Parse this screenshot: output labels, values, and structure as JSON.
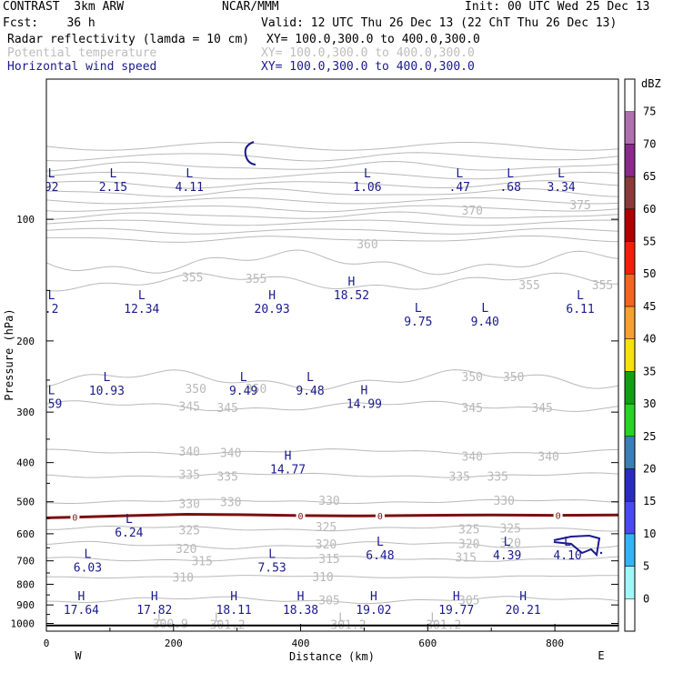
{
  "header": {
    "model": "CONTRAST  3km ARW",
    "org": "NCAR/MMM",
    "init": "Init: 00 UTC Wed 25 Dec 13",
    "fcst": "Fcst:    36 h",
    "valid": "Valid: 12 UTC Thu 26 Dec 13 (22 ChT Thu 26 Dec 13)",
    "field1": "Radar reflectivity (lamda = 10 cm)",
    "field1_xy": "XY= 100.0,300.0 to 400.0,300.0",
    "field2": "Potential temperature",
    "field2_xy": "XY= 100.0,300.0 to 400.0,300.0",
    "field3": "Horizontal wind speed",
    "field3_xy": "XY= 100.0,300.0 to 400.0,300.0"
  },
  "colors": {
    "theta": "#b9b9b9",
    "wind": "#1a1a8c",
    "freezing": "#7a1010"
  },
  "chart_data": {
    "type": "cross-section",
    "xlabel": "Distance (km)",
    "ylabel": "Pressure (hPa)",
    "xlim": [
      0,
      900
    ],
    "ylim": [
      1045,
      45
    ],
    "y_scale": "log-pressure",
    "x_ticks": [
      "0",
      "200",
      "400",
      "600",
      "800"
    ],
    "y_ticks": [
      "100",
      "200",
      "300",
      "400",
      "500",
      "600",
      "700",
      "800",
      "900",
      "1000"
    ],
    "west_label": "W",
    "east_label": "E",
    "theta_labels": [
      {
        "text": "375",
        "x": 840,
        "p": 92
      },
      {
        "text": "370",
        "x": 670,
        "p": 95
      },
      {
        "text": "360",
        "x": 505,
        "p": 115
      },
      {
        "text": "355",
        "x": 230,
        "p": 139
      },
      {
        "text": "355",
        "x": 330,
        "p": 140
      },
      {
        "text": "355",
        "x": 760,
        "p": 145
      },
      {
        "text": "355",
        "x": 875,
        "p": 145
      },
      {
        "text": "350",
        "x": 235,
        "p": 262
      },
      {
        "text": "350",
        "x": 330,
        "p": 262
      },
      {
        "text": "350",
        "x": 670,
        "p": 245
      },
      {
        "text": "350",
        "x": 735,
        "p": 245
      },
      {
        "text": "345",
        "x": 225,
        "p": 290
      },
      {
        "text": "345",
        "x": 285,
        "p": 292
      },
      {
        "text": "345",
        "x": 670,
        "p": 292
      },
      {
        "text": "345",
        "x": 780,
        "p": 292
      },
      {
        "text": "340",
        "x": 225,
        "p": 375
      },
      {
        "text": "340",
        "x": 290,
        "p": 378
      },
      {
        "text": "340",
        "x": 670,
        "p": 385
      },
      {
        "text": "340",
        "x": 790,
        "p": 385
      },
      {
        "text": "335",
        "x": 225,
        "p": 428
      },
      {
        "text": "335",
        "x": 285,
        "p": 432
      },
      {
        "text": "335",
        "x": 650,
        "p": 432
      },
      {
        "text": "335",
        "x": 710,
        "p": 432
      },
      {
        "text": "330",
        "x": 225,
        "p": 504
      },
      {
        "text": "330",
        "x": 290,
        "p": 500
      },
      {
        "text": "330",
        "x": 445,
        "p": 496
      },
      {
        "text": "330",
        "x": 720,
        "p": 496
      },
      {
        "text": "325",
        "x": 225,
        "p": 587
      },
      {
        "text": "325",
        "x": 440,
        "p": 576
      },
      {
        "text": "325",
        "x": 665,
        "p": 584
      },
      {
        "text": "325",
        "x": 730,
        "p": 580
      },
      {
        "text": "320",
        "x": 220,
        "p": 652
      },
      {
        "text": "320",
        "x": 440,
        "p": 636
      },
      {
        "text": "320",
        "x": 665,
        "p": 634
      },
      {
        "text": "320",
        "x": 730,
        "p": 630
      },
      {
        "text": "315",
        "x": 245,
        "p": 700
      },
      {
        "text": "315",
        "x": 445,
        "p": 690
      },
      {
        "text": "315",
        "x": 660,
        "p": 685
      },
      {
        "text": "310",
        "x": 215,
        "p": 768
      },
      {
        "text": "310",
        "x": 435,
        "p": 766
      },
      {
        "text": "305",
        "x": 445,
        "p": 875
      },
      {
        "text": "305",
        "x": 665,
        "p": 875
      },
      {
        "text": "300.9",
        "x": 195,
        "p": 1000
      },
      {
        "text": "301.2",
        "x": 285,
        "p": 1005
      },
      {
        "text": "301.2",
        "x": 475,
        "p": 1005
      },
      {
        "text": "301.2",
        "x": 625,
        "p": 1005
      }
    ],
    "theta_lows": [
      {
        "x": 180,
        "p": 985
      },
      {
        "x": 270,
        "p": 990
      },
      {
        "x": 465,
        "p": 990
      },
      {
        "x": 610,
        "p": 990
      }
    ],
    "wind_extrema": [
      {
        "type": "L",
        "value": "92",
        "x": 8,
        "p": 80
      },
      {
        "type": "L",
        "value": "2.15",
        "x": 105,
        "p": 80
      },
      {
        "type": "L",
        "value": "4.11",
        "x": 225,
        "p": 80
      },
      {
        "type": "L",
        "value": "1.06",
        "x": 505,
        "p": 80
      },
      {
        "type": "L",
        "value": ".47",
        "x": 650,
        "p": 80
      },
      {
        "type": "L",
        "value": ".68",
        "x": 730,
        "p": 80
      },
      {
        "type": "L",
        "value": "3.34",
        "x": 810,
        "p": 80
      },
      {
        "type": "L",
        "value": ".2",
        "x": 8,
        "p": 160
      },
      {
        "type": "L",
        "value": "12.34",
        "x": 150,
        "p": 160
      },
      {
        "type": "H",
        "value": "20.93",
        "x": 355,
        "p": 160
      },
      {
        "type": "H",
        "value": "18.52",
        "x": 480,
        "p": 148
      },
      {
        "type": "L",
        "value": "9.75",
        "x": 585,
        "p": 172
      },
      {
        "type": "L",
        "value": "9.40",
        "x": 690,
        "p": 172
      },
      {
        "type": "L",
        "value": "6.11",
        "x": 840,
        "p": 160
      },
      {
        "type": "L",
        "value": ".59",
        "x": 8,
        "p": 275
      },
      {
        "type": "L",
        "value": "10.93",
        "x": 95,
        "p": 255
      },
      {
        "type": "L",
        "value": "9.49",
        "x": 310,
        "p": 255
      },
      {
        "type": "L",
        "value": "9.48",
        "x": 415,
        "p": 255
      },
      {
        "type": "H",
        "value": "14.99",
        "x": 500,
        "p": 275
      },
      {
        "type": "H",
        "value": "14.77",
        "x": 380,
        "p": 400
      },
      {
        "type": "L",
        "value": "6.24",
        "x": 130,
        "p": 573
      },
      {
        "type": "L",
        "value": "6.48",
        "x": 525,
        "p": 652
      },
      {
        "type": "L",
        "value": "4.39",
        "x": 725,
        "p": 652
      },
      {
        "type": "L",
        "value": "4.10",
        "x": 820,
        "p": 652
      },
      {
        "type": "L",
        "value": "6.03",
        "x": 65,
        "p": 700
      },
      {
        "type": "L",
        "value": "7.53",
        "x": 355,
        "p": 700
      },
      {
        "type": "H",
        "value": "17.64",
        "x": 55,
        "p": 890
      },
      {
        "type": "H",
        "value": "17.82",
        "x": 170,
        "p": 890
      },
      {
        "type": "H",
        "value": "18.11",
        "x": 295,
        "p": 890
      },
      {
        "type": "H",
        "value": "18.38",
        "x": 400,
        "p": 890
      },
      {
        "type": "H",
        "value": "19.02",
        "x": 515,
        "p": 890
      },
      {
        "type": "H",
        "value": "19.77",
        "x": 645,
        "p": 890
      },
      {
        "type": "H",
        "value": "20.21",
        "x": 750,
        "p": 890
      }
    ],
    "freezing_line": {
      "label": "0",
      "points": [
        [
          0,
          548
        ],
        [
          60,
          545
        ],
        [
          150,
          540
        ],
        [
          220,
          537
        ],
        [
          300,
          538
        ],
        [
          400,
          541
        ],
        [
          500,
          542
        ],
        [
          600,
          540
        ],
        [
          700,
          539
        ],
        [
          800,
          540
        ],
        [
          900,
          539
        ]
      ],
      "label_x": [
        45,
        400,
        525,
        805
      ]
    },
    "colorbar": {
      "unit": "dBZ",
      "levels": [
        "0",
        "5",
        "10",
        "15",
        "20",
        "25",
        "30",
        "35",
        "40",
        "45",
        "50",
        "55",
        "60",
        "65",
        "70",
        "75"
      ],
      "colors": [
        "#ffffff",
        "#9ff7f7",
        "#33b5f5",
        "#4a4af5",
        "#2b2bc4",
        "#3a7fb8",
        "#25d425",
        "#12a012",
        "#f5e20a",
        "#f5a030",
        "#f56420",
        "#f51e0a",
        "#b00000",
        "#8a3a3a",
        "#8a2a8a",
        "#b070b0"
      ]
    }
  }
}
